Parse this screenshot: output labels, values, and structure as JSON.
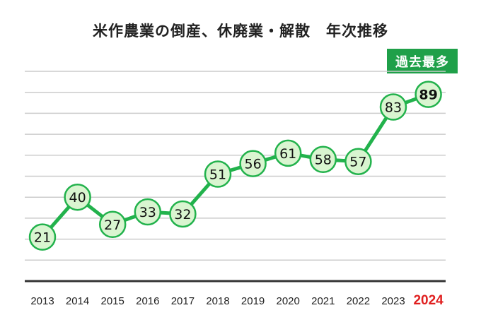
{
  "chart_data": {
    "type": "line",
    "title": "米作農業の倒産、休廃業・解散　年次推移",
    "badge": "過去最多",
    "x": [
      "2013",
      "2014",
      "2015",
      "2016",
      "2017",
      "2018",
      "2019",
      "2020",
      "2021",
      "2022",
      "2023",
      "2024"
    ],
    "series": [
      {
        "values": [
          21,
          40,
          27,
          33,
          32,
          51,
          56,
          61,
          58,
          57,
          83,
          89
        ]
      }
    ],
    "highlight": {
      "x": "2024",
      "value": 89
    },
    "colors": {
      "line": "#22b24c",
      "marker_fill": "#d9f5d0",
      "marker_stroke": "#22b24c",
      "highlight_label": "#e02020",
      "badge": "#1fa049",
      "grid": "#cccccc",
      "baseline": "#333333"
    },
    "grid": true,
    "ylim": [
      0,
      100
    ]
  }
}
